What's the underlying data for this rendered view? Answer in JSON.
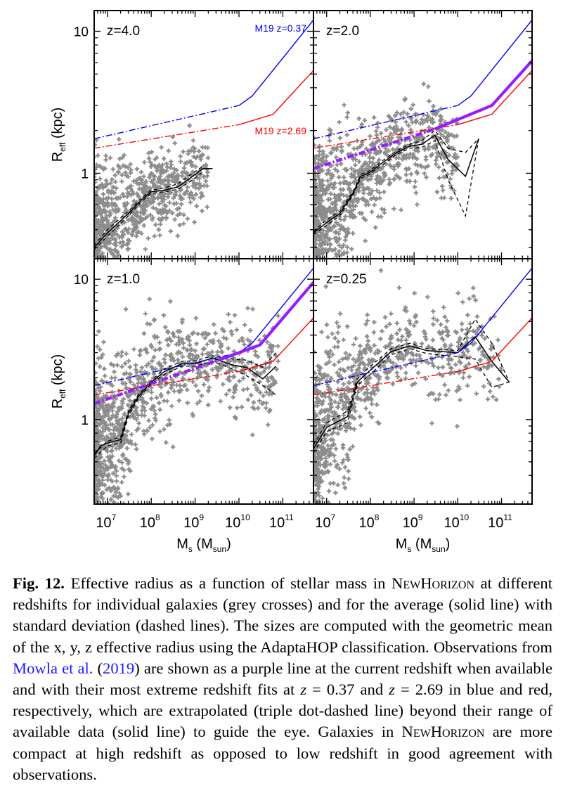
{
  "figure": {
    "ylabel_main": "R",
    "ylabel_sub": "eff",
    "ylabel_unit": " (kpc)",
    "xlabel_main": "M",
    "xlabel_sub": "s",
    "xlabel_unit_open": " (M",
    "xlabel_unit_sub": "sun",
    "xlabel_unit_close": ")",
    "x_tick_labels": [
      {
        "base": "10",
        "exp": "7"
      },
      {
        "base": "10",
        "exp": "8"
      },
      {
        "base": "10",
        "exp": "9"
      },
      {
        "base": "10",
        "exp": "10"
      },
      {
        "base": "10",
        "exp": "11"
      }
    ],
    "y_tick_labels": [
      "10",
      "1"
    ],
    "colors": {
      "scatter": "#8c8c8c",
      "mean": "#000000",
      "m19_low_z": "#0000ff",
      "m19_high_z": "#ff0000",
      "m19_current": "#9a1bff"
    },
    "legend_text": {
      "m19_low": "M19 z=0.37",
      "m19_high": "M19 z=2.69"
    }
  },
  "chart_data": [
    {
      "type": "scatter",
      "panel": "top-left",
      "title": "z=4.0",
      "xlabel": "M_s (M_sun)",
      "ylabel": "R_eff (kpc)",
      "xscale": "log",
      "yscale": "log",
      "xlim": [
        5000000.0,
        500000000000.0
      ],
      "ylim": [
        0.25,
        14
      ],
      "x_ticks": [
        10000000.0,
        100000000.0,
        1000000000.0,
        10000000000.0,
        100000000000.0
      ],
      "y_ticks": [
        1,
        10
      ],
      "legend": [
        "M19 z=0.37 (top-right)",
        "M19 z=2.69 (middle-right)"
      ],
      "series": [
        {
          "name": "mean",
          "style": "solid",
          "x": [
            5000000.0,
            10000000.0,
            30000000.0,
            60000000.0,
            100000000.0,
            200000000.0,
            400000000.0,
            800000000.0,
            1500000000.0,
            2500000000.0
          ],
          "y": [
            0.3,
            0.38,
            0.52,
            0.65,
            0.74,
            0.76,
            0.8,
            0.93,
            1.08,
            1.08
          ]
        },
        {
          "name": "mean+sigma",
          "style": "dashed",
          "x": [
            5000000.0,
            10000000.0,
            30000000.0,
            60000000.0,
            100000000.0,
            200000000.0,
            400000000.0,
            800000000.0,
            1500000000.0
          ],
          "y": [
            0.31,
            0.4,
            0.54,
            0.67,
            0.76,
            0.79,
            0.84,
            0.98,
            1.12
          ]
        },
        {
          "name": "mean-sigma",
          "style": "dashed",
          "x": [
            5000000.0,
            10000000.0,
            30000000.0,
            60000000.0,
            100000000.0,
            200000000.0,
            400000000.0,
            800000000.0,
            1500000000.0
          ],
          "y": [
            0.29,
            0.36,
            0.5,
            0.63,
            0.72,
            0.74,
            0.77,
            0.88,
            1.02
          ]
        },
        {
          "name": "M19 z=0.37",
          "style": "blue",
          "x": [
            5000000.0,
            10000000000.0,
            20000000000.0,
            500000000000.0
          ],
          "y": [
            1.75,
            3.0,
            3.5,
            12.0
          ]
        },
        {
          "name": "M19 z=2.69",
          "style": "red",
          "x": [
            5000000.0,
            10000000000.0,
            60000000000.0,
            500000000000.0
          ],
          "y": [
            1.5,
            2.2,
            2.6,
            5.3
          ]
        }
      ]
    },
    {
      "type": "scatter",
      "panel": "top-right",
      "title": "z=2.0",
      "xlabel": "M_s (M_sun)",
      "ylabel": "R_eff (kpc)",
      "xscale": "log",
      "yscale": "log",
      "xlim": [
        5000000.0,
        500000000000.0
      ],
      "ylim": [
        0.25,
        14
      ],
      "x_ticks": [
        10000000.0,
        100000000.0,
        1000000000.0,
        10000000000.0,
        100000000000.0
      ],
      "y_ticks": [
        1,
        10
      ],
      "series": [
        {
          "name": "mean",
          "style": "solid",
          "x": [
            5000000.0,
            10000000.0,
            20000000.0,
            40000000.0,
            60000000.0,
            100000000.0,
            200000000.0,
            400000000.0,
            800000000.0,
            1500000000.0,
            3000000000.0,
            6000000000.0,
            15000000000.0,
            30000000000.0
          ],
          "y": [
            0.38,
            0.45,
            0.52,
            0.72,
            0.95,
            1.02,
            1.2,
            1.4,
            1.55,
            1.6,
            1.85,
            1.25,
            0.95,
            1.75
          ]
        },
        {
          "name": "mean+sigma",
          "style": "dashed",
          "x": [
            5000000.0,
            10000000.0,
            20000000.0,
            40000000.0,
            60000000.0,
            100000000.0,
            200000000.0,
            400000000.0,
            800000000.0,
            1500000000.0,
            3000000000.0,
            6000000000.0,
            15000000000.0,
            30000000000.0
          ],
          "y": [
            0.39,
            0.47,
            0.54,
            0.74,
            0.98,
            1.05,
            1.24,
            1.44,
            1.6,
            1.7,
            2.0,
            1.5,
            1.4,
            1.75
          ]
        },
        {
          "name": "mean-sigma",
          "style": "dashed",
          "x": [
            5000000.0,
            10000000.0,
            20000000.0,
            40000000.0,
            60000000.0,
            100000000.0,
            200000000.0,
            400000000.0,
            800000000.0,
            1500000000.0,
            3000000000.0,
            6000000000.0,
            15000000000.0,
            30000000000.0
          ],
          "y": [
            0.37,
            0.43,
            0.5,
            0.7,
            0.92,
            0.99,
            1.16,
            1.36,
            1.5,
            1.52,
            1.7,
            0.9,
            0.5,
            1.75
          ]
        },
        {
          "name": "M19 z=0.37",
          "style": "blue",
          "x": [
            5000000.0,
            10000000000.0,
            20000000000.0,
            500000000000.0
          ],
          "y": [
            1.75,
            3.0,
            3.5,
            12.0
          ]
        },
        {
          "name": "M19 z=2.69",
          "style": "red",
          "x": [
            5000000.0,
            10000000000.0,
            60000000000.0,
            500000000000.0
          ],
          "y": [
            1.5,
            2.2,
            2.6,
            5.3
          ]
        },
        {
          "name": "M19 z=2.0",
          "style": "purple",
          "x": [
            5000000.0,
            3000000000.0,
            60000000000.0,
            500000000000.0
          ],
          "y": [
            1.08,
            2.05,
            3.0,
            6.2
          ]
        }
      ]
    },
    {
      "type": "scatter",
      "panel": "bottom-left",
      "title": "z=1.0",
      "xlabel": "M_s (M_sun)",
      "ylabel": "R_eff (kpc)",
      "xscale": "log",
      "yscale": "log",
      "xlim": [
        5000000.0,
        500000000000.0
      ],
      "ylim": [
        0.25,
        14
      ],
      "x_ticks": [
        10000000.0,
        100000000.0,
        1000000000.0,
        10000000000.0,
        100000000000.0
      ],
      "y_ticks": [
        1,
        10
      ],
      "series": [
        {
          "name": "mean",
          "style": "solid",
          "x": [
            5000000.0,
            7000000.0,
            10000000.0,
            20000000.0,
            30000000.0,
            50000000.0,
            100000000.0,
            200000000.0,
            500000000.0,
            1000000000.0,
            2500000000.0,
            7000000000.0,
            15000000000.0,
            35000000000.0,
            70000000000.0
          ],
          "y": [
            0.55,
            0.65,
            0.68,
            0.72,
            1.1,
            1.45,
            1.85,
            2.2,
            2.5,
            2.5,
            2.75,
            2.45,
            2.35,
            1.95,
            2.4
          ]
        },
        {
          "name": "mean+sigma",
          "style": "dashed",
          "x": [
            5000000.0,
            10000000.0,
            20000000.0,
            30000000.0,
            50000000.0,
            100000000.0,
            200000000.0,
            500000000.0,
            1000000000.0,
            2500000000.0,
            7000000000.0,
            15000000000.0,
            35000000000.0,
            70000000000.0
          ],
          "y": [
            0.57,
            0.7,
            0.75,
            1.15,
            1.5,
            1.9,
            2.3,
            2.6,
            2.62,
            2.85,
            2.7,
            2.65,
            2.35,
            3.0
          ]
        },
        {
          "name": "mean-sigma",
          "style": "dashed",
          "x": [
            5000000.0,
            10000000.0,
            20000000.0,
            30000000.0,
            50000000.0,
            100000000.0,
            200000000.0,
            500000000.0,
            1000000000.0,
            2500000000.0,
            7000000000.0,
            15000000000.0,
            35000000000.0,
            70000000000.0
          ],
          "y": [
            0.53,
            0.65,
            0.68,
            1.05,
            1.4,
            1.8,
            2.1,
            2.4,
            2.4,
            2.6,
            2.3,
            2.05,
            1.75,
            1.5
          ]
        },
        {
          "name": "M19 z=0.37",
          "style": "blue",
          "x": [
            5000000.0,
            10000000000.0,
            20000000000.0,
            500000000000.0
          ],
          "y": [
            1.75,
            3.0,
            3.5,
            12.0
          ]
        },
        {
          "name": "M19 z=2.69",
          "style": "red",
          "x": [
            5000000.0,
            10000000000.0,
            60000000000.0,
            500000000000.0
          ],
          "y": [
            1.5,
            2.2,
            2.6,
            5.3
          ]
        },
        {
          "name": "M19 z=1.0",
          "style": "purple",
          "x": [
            5000000.0,
            4000000000.0,
            30000000000.0,
            500000000000.0
          ],
          "y": [
            1.3,
            2.7,
            3.4,
            9.5
          ]
        }
      ]
    },
    {
      "type": "scatter",
      "panel": "bottom-right",
      "title": "z=0.25",
      "xlabel": "M_s (M_sun)",
      "ylabel": "R_eff (kpc)",
      "xscale": "log",
      "yscale": "log",
      "xlim": [
        5000000.0,
        500000000000.0
      ],
      "ylim": [
        0.25,
        14
      ],
      "x_ticks": [
        10000000.0,
        100000000.0,
        1000000000.0,
        10000000000.0,
        100000000000.0
      ],
      "y_ticks": [
        1,
        10
      ],
      "series": [
        {
          "name": "mean",
          "style": "solid",
          "x": [
            5000000.0,
            10000000.0,
            30000000.0,
            50000000.0,
            100000000.0,
            300000000.0,
            800000000.0,
            2000000000.0,
            10000000000.0,
            25000000000.0,
            60000000000.0,
            150000000000.0
          ],
          "y": [
            0.62,
            0.88,
            1.05,
            1.85,
            2.25,
            3.05,
            3.35,
            3.1,
            3.0,
            3.9,
            2.6,
            1.85
          ]
        },
        {
          "name": "mean+sigma",
          "style": "dashed",
          "x": [
            5000000.0,
            10000000.0,
            30000000.0,
            50000000.0,
            100000000.0,
            300000000.0,
            800000000.0,
            2000000000.0,
            10000000000.0,
            25000000000.0,
            60000000000.0,
            150000000000.0
          ],
          "y": [
            0.66,
            0.95,
            1.15,
            1.95,
            2.4,
            3.2,
            3.5,
            3.2,
            3.1,
            5.2,
            3.5,
            1.85
          ]
        },
        {
          "name": "mean-sigma",
          "style": "dashed",
          "x": [
            5000000.0,
            10000000.0,
            30000000.0,
            50000000.0,
            100000000.0,
            300000000.0,
            800000000.0,
            2000000000.0,
            10000000000.0,
            25000000000.0,
            60000000000.0,
            150000000000.0
          ],
          "y": [
            0.58,
            0.82,
            0.95,
            1.75,
            2.1,
            2.9,
            3.2,
            2.95,
            2.8,
            2.7,
            1.7,
            1.85
          ]
        },
        {
          "name": "M19 z=0.37",
          "style": "blue",
          "x": [
            5000000.0,
            10000000000.0,
            20000000000.0,
            500000000000.0
          ],
          "y": [
            1.75,
            3.0,
            3.5,
            12.0
          ]
        },
        {
          "name": "M19 z=2.69",
          "style": "red",
          "x": [
            5000000.0,
            10000000000.0,
            60000000000.0,
            500000000000.0
          ],
          "y": [
            1.5,
            2.2,
            2.6,
            5.3
          ]
        }
      ]
    }
  ],
  "caption": {
    "fig_label": "Fig. 12.",
    "seg1": " Effective radius as a function of stellar mass in ",
    "newhorizon": "NewHorizon",
    "seg2": " at different redshifts for individual galaxies (grey crosses) and for the average (solid line) with standard deviation (dashed lines). The sizes are computed with the geometric mean of the x, y, z effective radius using the AdaptaHOP classification. Observations from ",
    "link_text": "Mowla et al.",
    "seg_year_open": " (",
    "link_year": "2019",
    "seg_year_close": ")",
    "seg3": " are shown as a purple line at the current redshift when available and with their most extreme redshift fits at ",
    "z_sym": "z",
    "seg4": " = 0.37 and ",
    "seg5": " = 2.69 in blue and red, respectively, which are extrapolated (triple dot-dashed line) beyond their range of available data (solid line) to guide the eye. Galaxies in ",
    "seg6": " are more compact at high redshift as opposed to low redshift in good agreement with observations."
  }
}
